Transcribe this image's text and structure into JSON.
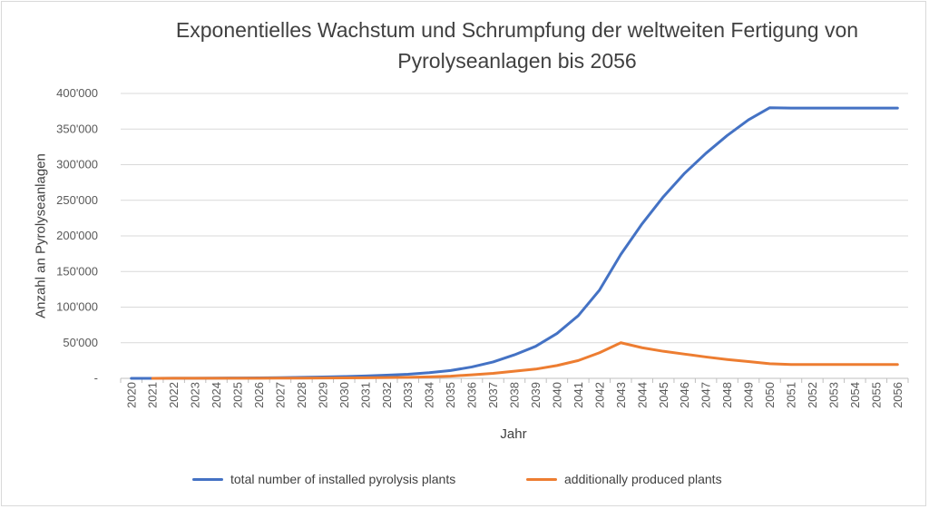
{
  "chart_data": {
    "type": "line",
    "title": "Exponentielles Wachstum und Schrumpfung der weltweiten Fertigung von Pyrolyseanlagen bis 2056",
    "xlabel": "Jahr",
    "ylabel": "Anzahl an Pyrolyseanlagen",
    "ylim": [
      0,
      400000
    ],
    "yticks": [
      0,
      50000,
      100000,
      150000,
      200000,
      250000,
      300000,
      350000,
      400000
    ],
    "ytick_labels": [
      "-",
      "50'000",
      "100'000",
      "150'000",
      "200'000",
      "250'000",
      "300'000",
      "350'000",
      "400'000"
    ],
    "grid": "horizontal",
    "legend_position": "bottom",
    "categories": [
      "2020",
      "2021",
      "2022",
      "2023",
      "2024",
      "2025",
      "2026",
      "2027",
      "2028",
      "2029",
      "2030",
      "2031",
      "2032",
      "2033",
      "2034",
      "2035",
      "2036",
      "2037",
      "2038",
      "2039",
      "2040",
      "2041",
      "2042",
      "2043",
      "2044",
      "2045",
      "2046",
      "2047",
      "2048",
      "2049",
      "2050",
      "2051",
      "2052",
      "2053",
      "2054",
      "2055",
      "2056"
    ],
    "series": [
      {
        "name": "total number of installed pyrolysis plants",
        "color": "#4472C4",
        "values": [
          0,
          0,
          100,
          200,
          300,
          500,
          700,
          1000,
          1400,
          1900,
          2500,
          3300,
          4400,
          5800,
          7900,
          11000,
          16000,
          23000,
          33000,
          45000,
          63000,
          88000,
          124000,
          174000,
          217000,
          255000,
          288000,
          316000,
          341000,
          363000,
          380000,
          379500,
          379500,
          379500,
          379500,
          379500,
          379500
        ]
      },
      {
        "name": "additionally produced plants",
        "color": "#ED7D31",
        "values": [
          null,
          0,
          100,
          100,
          100,
          200,
          200,
          300,
          400,
          500,
          600,
          800,
          1100,
          1400,
          2100,
          3100,
          5000,
          7000,
          10000,
          13000,
          18000,
          25000,
          36000,
          50000,
          43000,
          38000,
          34000,
          30000,
          26500,
          23500,
          20500,
          19500,
          19500,
          19500,
          19500,
          19500,
          19500
        ]
      }
    ]
  }
}
